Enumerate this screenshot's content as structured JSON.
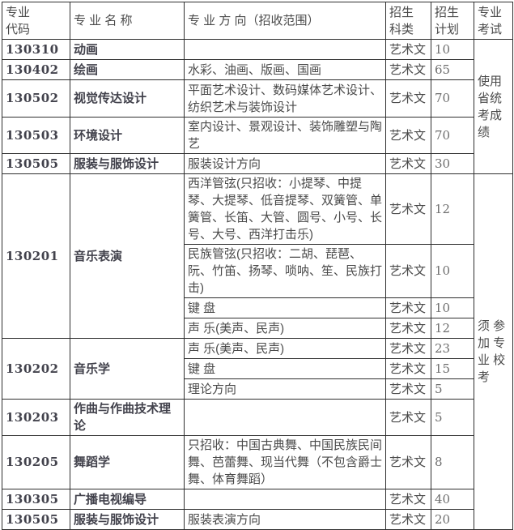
{
  "table": {
    "header": {
      "code": "专业\n代码",
      "name": "专 业 名 称",
      "direction": "专 业 方 向（招收范围）",
      "category": "招生\n科类",
      "plan": "招生\n计划",
      "exam": "专业\n考试"
    },
    "exam": {
      "provincial": "使用省统考成绩",
      "school": "须 参 加 专 业 校 考"
    },
    "rows": [
      {
        "code": "130310",
        "name": "动画",
        "direction": "",
        "category": "艺术文",
        "plan": "10"
      },
      {
        "code": "130402",
        "name": "绘画",
        "direction": "水彩、油画、版画、国画",
        "category": "艺术文",
        "plan": "65"
      },
      {
        "code": "130502",
        "name": "视觉传达设计",
        "direction": "平面艺术设计、数码媒体艺术设计、纺织艺术与装饰设计",
        "category": "艺术文",
        "plan": "70"
      },
      {
        "code": "130503",
        "name": "环境设计",
        "direction": "室内设计、景观设计、装饰雕塑与陶艺",
        "category": "艺术文",
        "plan": "70"
      },
      {
        "code": "130505",
        "name": "服装与服饰设计",
        "direction": "服装设计方向",
        "category": "艺术文",
        "plan": "30"
      },
      {
        "code": "130201",
        "name": "音乐表演",
        "direction": "西洋管弦(只招收：小提琴、中提琴、大提琴、低音提琴、双簧管、单簧管、长笛、大管、圆号、小号、长号、大号、西洋打击乐)",
        "category": "艺术文",
        "plan": "12"
      },
      {
        "direction": "民族管弦(只招收：二胡、琵琶、阮、竹笛、扬琴、唢呐、笙、民族打击)",
        "category": "艺术文",
        "plan": "10"
      },
      {
        "direction": "键 盘",
        "category": "艺术文",
        "plan": "10"
      },
      {
        "direction": "声 乐(美声、民声)",
        "category": "艺术文",
        "plan": "12"
      },
      {
        "code": "130202",
        "name": "音乐学",
        "direction": "声 乐(美声、民声)",
        "category": "艺术文",
        "plan": "23"
      },
      {
        "direction": "键 盘",
        "category": "艺术文",
        "plan": "15"
      },
      {
        "direction": "理论方向",
        "category": "艺术文",
        "plan": "5"
      },
      {
        "code": "130203",
        "name": "作曲与作曲技术理论",
        "direction": "",
        "category": "艺术文",
        "plan": "5"
      },
      {
        "code": "130205",
        "name": "舞蹈学",
        "direction": "只招收：中国古典舞、中国民族民间舞、芭蕾舞、现当代舞（不包含爵士舞、体育舞蹈）",
        "category": "艺术文",
        "plan": "8"
      },
      {
        "code": "130305",
        "name": "广播电视编导",
        "direction": "",
        "category": "艺术文",
        "plan": "40"
      },
      {
        "code": "130505",
        "name": "服装与服饰设计",
        "direction": "服装表演方向",
        "category": "艺术文",
        "plan": "20"
      }
    ]
  }
}
